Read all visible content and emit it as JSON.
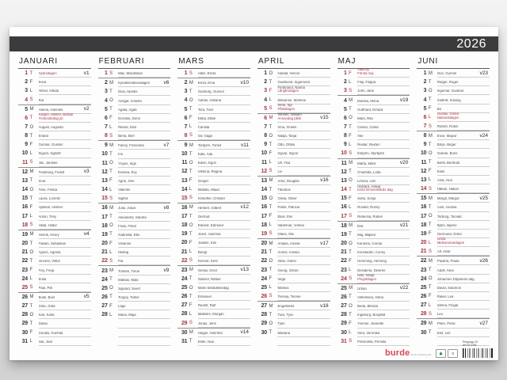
{
  "year": "2026",
  "footer": {
    "prisgrupp": "Prisgrupp 10",
    "artnr": "Art Nr 1045",
    "brand": "burde",
    "brand_sub": "Burde Publishing AB",
    "eco_icons": [
      "fsc-label-icon",
      "recycle-label-icon"
    ]
  },
  "colors": {
    "accent_red": "#a23840",
    "bar_dark": "#3b3b3d",
    "brand_red": "#d84756"
  },
  "months": [
    {
      "name": "JANUARI",
      "blanks": 0,
      "days": [
        {
          "d": 1,
          "w": "T",
          "n": "Nyårsdagen",
          "r": true,
          "nr": true,
          "v": "v1"
        },
        {
          "d": 2,
          "w": "F",
          "n": "Svea"
        },
        {
          "d": 3,
          "w": "L",
          "n": "Alfred, Alfrida"
        },
        {
          "d": 4,
          "w": "S",
          "n": "Rut",
          "r": true
        },
        {
          "d": 5,
          "w": "M",
          "n": "Hanna, Hannele",
          "v": "v2"
        },
        {
          "d": 6,
          "w": "T",
          "n": "Kasper, Melker, Baltsar",
          "s": "Trettondedag jul",
          "r": true,
          "nr": true
        },
        {
          "d": 7,
          "w": "O",
          "n": "August, Augusta"
        },
        {
          "d": 8,
          "w": "T",
          "n": "Erland"
        },
        {
          "d": 9,
          "w": "F",
          "n": "Gunnar, Gunder"
        },
        {
          "d": 10,
          "w": "L",
          "n": "Sigurd, Sigbritt"
        },
        {
          "d": 11,
          "w": "S",
          "n": "Jan, Jannike",
          "r": true
        },
        {
          "d": 12,
          "w": "M",
          "n": "Frideborg, Fridolf",
          "v": "v3"
        },
        {
          "d": 13,
          "w": "T",
          "n": "Knut"
        },
        {
          "d": 14,
          "w": "O",
          "n": "Felix, Felicia"
        },
        {
          "d": 15,
          "w": "T",
          "n": "Laura, Lorentz"
        },
        {
          "d": 16,
          "w": "F",
          "n": "Hjalmar, Helmer"
        },
        {
          "d": 17,
          "w": "L",
          "n": "Anton, Tony"
        },
        {
          "d": 18,
          "w": "S",
          "n": "Hilda, Hildur",
          "r": true
        },
        {
          "d": 19,
          "w": "M",
          "n": "Henrik, Henry",
          "v": "v4"
        },
        {
          "d": 20,
          "w": "T",
          "n": "Fabian, Sebastian"
        },
        {
          "d": 21,
          "w": "O",
          "n": "Agnes, Agneta"
        },
        {
          "d": 22,
          "w": "T",
          "n": "Vincent, Viktor"
        },
        {
          "d": 23,
          "w": "F",
          "n": "Frej, Freja"
        },
        {
          "d": 24,
          "w": "L",
          "n": "Erika"
        },
        {
          "d": 25,
          "w": "S",
          "n": "Paul, Pål",
          "r": true
        },
        {
          "d": 26,
          "w": "M",
          "n": "Bodil, Boel",
          "v": "v5"
        },
        {
          "d": 27,
          "w": "T",
          "n": "Göte, Göta"
        },
        {
          "d": 28,
          "w": "O",
          "n": "Karl, Karla"
        },
        {
          "d": 29,
          "w": "T",
          "n": "Diana"
        },
        {
          "d": 30,
          "w": "F",
          "n": "Gunilla, Gunhild"
        },
        {
          "d": 31,
          "w": "L",
          "n": "Ivar, Joar"
        }
      ]
    },
    {
      "name": "FEBRUARI",
      "blanks": 3,
      "days": [
        {
          "d": 1,
          "w": "S",
          "n": "Max, Maximilian",
          "r": true
        },
        {
          "d": 2,
          "w": "M",
          "n": "Kyndelsmässodagen",
          "v": "v6"
        },
        {
          "d": 3,
          "w": "T",
          "n": "Disa, Hjördis"
        },
        {
          "d": 4,
          "w": "O",
          "n": "Ansgar, Anselm"
        },
        {
          "d": 5,
          "w": "T",
          "n": "Agata, Agda"
        },
        {
          "d": 6,
          "w": "F",
          "n": "Dorotea, Doris"
        },
        {
          "d": 7,
          "w": "L",
          "n": "Rikard, Dick"
        },
        {
          "d": 8,
          "w": "S",
          "n": "Berta, Bert",
          "r": true
        },
        {
          "d": 9,
          "w": "M",
          "n": "Fanny, Franciska",
          "v": "v7"
        },
        {
          "d": 10,
          "w": "T",
          "n": "Iris"
        },
        {
          "d": 11,
          "w": "O",
          "n": "Yngve, Inge"
        },
        {
          "d": 12,
          "w": "T",
          "n": "Evelina, Evy"
        },
        {
          "d": 13,
          "w": "F",
          "n": "Agne, Ove"
        },
        {
          "d": 14,
          "w": "L",
          "n": "Valentin"
        },
        {
          "d": 15,
          "w": "S",
          "n": "Sigfrid",
          "r": true
        },
        {
          "d": 16,
          "w": "M",
          "n": "Julia, Julius",
          "v": "v8"
        },
        {
          "d": 17,
          "w": "T",
          "n": "Alexandra, Sandra"
        },
        {
          "d": 18,
          "w": "O",
          "n": "Frida, Fritiof"
        },
        {
          "d": 19,
          "w": "T",
          "n": "Gabriella, Ella"
        },
        {
          "d": 20,
          "w": "F",
          "n": "Vivianne"
        },
        {
          "d": 21,
          "w": "L",
          "n": "Hilding"
        },
        {
          "d": 22,
          "w": "S",
          "n": "Pia",
          "r": true
        },
        {
          "d": 23,
          "w": "M",
          "n": "Torsten, Torun",
          "v": "v9"
        },
        {
          "d": 24,
          "w": "T",
          "n": "Mattias, Mats"
        },
        {
          "d": 25,
          "w": "O",
          "n": "Sigvard, Sivert"
        },
        {
          "d": 26,
          "w": "T",
          "n": "Torgny, Torkel"
        },
        {
          "d": 27,
          "w": "F",
          "n": "Lage"
        },
        {
          "d": 28,
          "w": "L",
          "n": "Maria, Maja"
        }
      ]
    },
    {
      "name": "MARS",
      "blanks": 0,
      "days": [
        {
          "d": 1,
          "w": "S",
          "n": "Albin, Elvira",
          "r": true
        },
        {
          "d": 2,
          "w": "M",
          "n": "Ernst, Erna",
          "v": "v10"
        },
        {
          "d": 3,
          "w": "T",
          "n": "Gunborg, Gunvor"
        },
        {
          "d": 4,
          "w": "O",
          "n": "Adrian, Adriana"
        },
        {
          "d": 5,
          "w": "T",
          "n": "Tora, Tove"
        },
        {
          "d": 6,
          "w": "F",
          "n": "Ebba, Ebbe"
        },
        {
          "d": 7,
          "w": "L",
          "n": "Camilla"
        },
        {
          "d": 8,
          "w": "S",
          "n": "Siv, Saga",
          "r": true
        },
        {
          "d": 9,
          "w": "M",
          "n": "Torbjörn, Torleif",
          "v": "v11"
        },
        {
          "d": 10,
          "w": "T",
          "n": "Edla, Ada"
        },
        {
          "d": 11,
          "w": "O",
          "n": "Edvin, Egon"
        },
        {
          "d": 12,
          "w": "T",
          "n": "Viktoria, Regina"
        },
        {
          "d": 13,
          "w": "F",
          "n": "Greger"
        },
        {
          "d": 14,
          "w": "L",
          "n": "Matilda, Maud"
        },
        {
          "d": 15,
          "w": "S",
          "n": "Kristoffer, Christel",
          "r": true
        },
        {
          "d": 16,
          "w": "M",
          "n": "Herbert, Gilbert",
          "v": "v12"
        },
        {
          "d": 17,
          "w": "T",
          "n": "Gertrud"
        },
        {
          "d": 18,
          "w": "O",
          "n": "Edvard, Edmund"
        },
        {
          "d": 19,
          "w": "T",
          "n": "Josef, Josefina"
        },
        {
          "d": 20,
          "w": "F",
          "n": "Joakim, Kim"
        },
        {
          "d": 21,
          "w": "L",
          "n": "Bengt"
        },
        {
          "d": 22,
          "w": "S",
          "n": "Kennet, Kent",
          "r": true
        },
        {
          "d": 23,
          "w": "M",
          "n": "Gerda, Gerd",
          "v": "v13"
        },
        {
          "d": 24,
          "w": "T",
          "n": "Gabriel, Rafael"
        },
        {
          "d": 25,
          "w": "O",
          "n": "Marie bebådelsedag"
        },
        {
          "d": 26,
          "w": "T",
          "n": "Emanuel"
        },
        {
          "d": 27,
          "w": "F",
          "n": "Rudolf, Ralf"
        },
        {
          "d": 28,
          "w": "L",
          "n": "Malkolm, Morgan"
        },
        {
          "d": 29,
          "w": "S",
          "n": "Jonas, Jens",
          "r": true
        },
        {
          "d": 30,
          "w": "M",
          "n": "Holger, Holmfrid",
          "v": "v14"
        },
        {
          "d": 31,
          "w": "T",
          "n": "Ester, Noa"
        }
      ]
    },
    {
      "name": "APRIL",
      "blanks": 1,
      "days": [
        {
          "d": 1,
          "w": "O",
          "n": "Harald, Hervor"
        },
        {
          "d": 2,
          "w": "T",
          "n": "Gudmund, Ingemund"
        },
        {
          "d": 3,
          "w": "F",
          "n": "Ferdinand, Nanna",
          "s": "Långfredagen",
          "r": true
        },
        {
          "d": 4,
          "w": "L",
          "n": "Marianne, Marlene"
        },
        {
          "d": 5,
          "w": "S",
          "n": "Irene, Irja",
          "s": "Påskdagen",
          "r": true
        },
        {
          "d": 6,
          "w": "M",
          "n": "Vilhelm, William",
          "s": "Annandag påsk",
          "r": true,
          "v": "v15"
        },
        {
          "d": 7,
          "w": "T",
          "n": "Irma, Irmelin"
        },
        {
          "d": 8,
          "w": "O",
          "n": "Nadja, Tanja"
        },
        {
          "d": 9,
          "w": "T",
          "n": "Otto, Ottilia"
        },
        {
          "d": 10,
          "w": "F",
          "n": "Ingvar, Ingvor"
        },
        {
          "d": 11,
          "w": "L",
          "n": "Ulf, Ylva"
        },
        {
          "d": 12,
          "w": "S",
          "n": "Liv",
          "r": true
        },
        {
          "d": 13,
          "w": "M",
          "n": "Artur, Douglas",
          "v": "v16"
        },
        {
          "d": 14,
          "w": "T",
          "n": "Tiburtius"
        },
        {
          "d": 15,
          "w": "O",
          "n": "Olivia, Oliver"
        },
        {
          "d": 16,
          "w": "T",
          "n": "Patrik, Patricia"
        },
        {
          "d": 17,
          "w": "F",
          "n": "Elias, Elis"
        },
        {
          "d": 18,
          "w": "L",
          "n": "Valdemar, Volmar"
        },
        {
          "d": 19,
          "w": "S",
          "n": "Olaus, Ola",
          "r": true
        },
        {
          "d": 20,
          "w": "M",
          "n": "Amalia, Amelie",
          "v": "v17"
        },
        {
          "d": 21,
          "w": "T",
          "n": "Anneli, Annika"
        },
        {
          "d": 22,
          "w": "O",
          "n": "Allan, Glenn"
        },
        {
          "d": 23,
          "w": "T",
          "n": "Georg, Göran"
        },
        {
          "d": 24,
          "w": "F",
          "n": "Vega"
        },
        {
          "d": 25,
          "w": "L",
          "n": "Markus"
        },
        {
          "d": 26,
          "w": "S",
          "n": "Teresia, Terese",
          "r": true
        },
        {
          "d": 27,
          "w": "M",
          "n": "Engelbrekt",
          "v": "v18"
        },
        {
          "d": 28,
          "w": "T",
          "n": "Ture, Tyra"
        },
        {
          "d": 29,
          "w": "O",
          "n": "Tyko"
        },
        {
          "d": 30,
          "w": "T",
          "n": "Mariana"
        }
      ]
    },
    {
      "name": "MAJ",
      "blanks": 0,
      "days": [
        {
          "d": 1,
          "w": "F",
          "n": "Valborg",
          "s": "Första maj",
          "r": true,
          "nr": true
        },
        {
          "d": 2,
          "w": "L",
          "n": "Filip, Filippa"
        },
        {
          "d": 3,
          "w": "S",
          "n": "John, Jane",
          "r": true
        },
        {
          "d": 4,
          "w": "M",
          "n": "Monika, Mona",
          "v": "v19"
        },
        {
          "d": 5,
          "w": "T",
          "n": "Gotthard, Erhard"
        },
        {
          "d": 6,
          "w": "O",
          "n": "Marit, Rita"
        },
        {
          "d": 7,
          "w": "T",
          "n": "Carina, Carita"
        },
        {
          "d": 8,
          "w": "F",
          "n": "Åke"
        },
        {
          "d": 9,
          "w": "L",
          "n": "Reidar, Reidun"
        },
        {
          "d": 10,
          "w": "S",
          "n": "Esbjörn, Styrbjörn",
          "r": true
        },
        {
          "d": 11,
          "w": "M",
          "n": "Märta, Märit",
          "v": "v20"
        },
        {
          "d": 12,
          "w": "T",
          "n": "Charlotta, Lotta"
        },
        {
          "d": 13,
          "w": "O",
          "n": "Linnea, Linn"
        },
        {
          "d": 14,
          "w": "T",
          "n": "Halvard, Halvar",
          "s": "Kristi himmelsfärds dag",
          "r": true
        },
        {
          "d": 15,
          "w": "F",
          "n": "Sofia, Sonja"
        },
        {
          "d": 16,
          "w": "L",
          "n": "Ronald, Ronny"
        },
        {
          "d": 17,
          "w": "S",
          "n": "Rebecka, Ruben",
          "r": true
        },
        {
          "d": 18,
          "w": "M",
          "n": "Erik",
          "v": "v21"
        },
        {
          "d": 19,
          "w": "T",
          "n": "Maj, Majken"
        },
        {
          "d": 20,
          "w": "O",
          "n": "Karolina, Carola"
        },
        {
          "d": 21,
          "w": "T",
          "n": "Konstantin, Conny"
        },
        {
          "d": 22,
          "w": "F",
          "n": "Hemming, Henning"
        },
        {
          "d": 23,
          "w": "L",
          "n": "Desideria, Desirée"
        },
        {
          "d": 24,
          "w": "S",
          "n": "Ivan, Vanja",
          "s": "Pingstdagen",
          "r": true
        },
        {
          "d": 25,
          "w": "M",
          "n": "Urban",
          "v": "v22"
        },
        {
          "d": 26,
          "w": "T",
          "n": "Vilhelmina, Vilma"
        },
        {
          "d": 27,
          "w": "O",
          "n": "Beda, Blenda"
        },
        {
          "d": 28,
          "w": "T",
          "n": "Ingeborg, Borghild"
        },
        {
          "d": 29,
          "w": "F",
          "n": "Yvonne, Jeanette"
        },
        {
          "d": 30,
          "w": "L",
          "n": "Vera, Veronika"
        },
        {
          "d": 31,
          "w": "S",
          "n": "Petronella, Pernilla",
          "r": true
        }
      ]
    },
    {
      "name": "JUNI",
      "blanks": 1,
      "days": [
        {
          "d": 1,
          "w": "M",
          "n": "Gun, Gunnel",
          "v": "v23"
        },
        {
          "d": 2,
          "w": "T",
          "n": "Rutger, Roger"
        },
        {
          "d": 3,
          "w": "O",
          "n": "Ingemar, Gudmar"
        },
        {
          "d": 4,
          "w": "T",
          "n": "Solbritt, Solveig"
        },
        {
          "d": 5,
          "w": "F",
          "n": "Bo"
        },
        {
          "d": 6,
          "w": "L",
          "n": "Gustav, Gösta",
          "s": "Nationaldagen",
          "r": true,
          "nr": true
        },
        {
          "d": 7,
          "w": "S",
          "n": "Robert, Robin",
          "r": true
        },
        {
          "d": 8,
          "w": "M",
          "n": "Eivor, Majvor",
          "v": "v24"
        },
        {
          "d": 9,
          "w": "T",
          "n": "Börje, Birger"
        },
        {
          "d": 10,
          "w": "O",
          "n": "Svante, Boris"
        },
        {
          "d": 11,
          "w": "T",
          "n": "Bertil, Berthold"
        },
        {
          "d": 12,
          "w": "F",
          "n": "Eskil"
        },
        {
          "d": 13,
          "w": "L",
          "n": "Aina, Aino"
        },
        {
          "d": 14,
          "w": "S",
          "n": "Håkan, Hakon",
          "r": true
        },
        {
          "d": 15,
          "w": "M",
          "n": "Margit, Margot",
          "v": "v25"
        },
        {
          "d": 16,
          "w": "T",
          "n": "Axel, Axelina"
        },
        {
          "d": 17,
          "w": "O",
          "n": "Torborg, Torvald"
        },
        {
          "d": 18,
          "w": "T",
          "n": "Björn, Bjarne"
        },
        {
          "d": 19,
          "w": "F",
          "n": "Germund, Görel"
        },
        {
          "d": 20,
          "w": "L",
          "n": "Linda",
          "s": "Midsommardagen",
          "r": true,
          "nr": true
        },
        {
          "d": 21,
          "w": "S",
          "n": "Alf, Alvar",
          "r": true
        },
        {
          "d": 22,
          "w": "M",
          "n": "Paulina, Paula",
          "v": "v26"
        },
        {
          "d": 23,
          "w": "T",
          "n": "Adolf, Alice"
        },
        {
          "d": 24,
          "w": "O",
          "n": "Johannes Döparens dag"
        },
        {
          "d": 25,
          "w": "T",
          "n": "David, Salomon"
        },
        {
          "d": 26,
          "w": "F",
          "n": "Rakel, Lea"
        },
        {
          "d": 27,
          "w": "L",
          "n": "Selma, Fingal"
        },
        {
          "d": 28,
          "w": "S",
          "n": "Leo",
          "r": true
        },
        {
          "d": 29,
          "w": "M",
          "n": "Peter, Petra",
          "v": "v27"
        },
        {
          "d": 30,
          "w": "T",
          "n": "Elof, Leif"
        }
      ]
    }
  ]
}
